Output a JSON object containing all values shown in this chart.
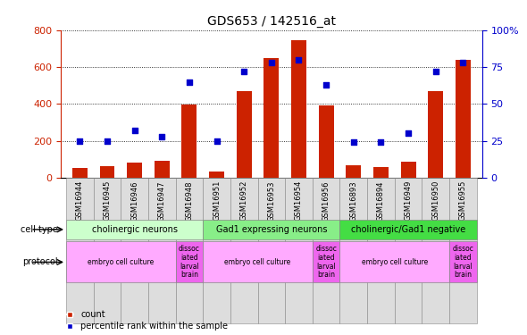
{
  "title": "GDS653 / 142516_at",
  "samples": [
    "GSM16944",
    "GSM16945",
    "GSM16946",
    "GSM16947",
    "GSM16948",
    "GSM16951",
    "GSM16952",
    "GSM16953",
    "GSM16954",
    "GSM16956",
    "GSM16893",
    "GSM16894",
    "GSM16949",
    "GSM16950",
    "GSM16955"
  ],
  "counts": [
    50,
    60,
    80,
    90,
    395,
    35,
    470,
    650,
    745,
    390,
    65,
    55,
    85,
    470,
    640
  ],
  "percentile": [
    25,
    25,
    32,
    28,
    65,
    25,
    72,
    78,
    80,
    63,
    24,
    24,
    30,
    72,
    78
  ],
  "ylim_left": [
    0,
    800
  ],
  "ylim_right": [
    0,
    100
  ],
  "yticks_left": [
    0,
    200,
    400,
    600,
    800
  ],
  "yticks_right": [
    0,
    25,
    50,
    75,
    100
  ],
  "bar_color": "#cc2200",
  "dot_color": "#0000cc",
  "cell_type_groups": [
    {
      "label": "cholinergic neurons",
      "start": 0,
      "end": 5,
      "color": "#ccffcc"
    },
    {
      "label": "Gad1 expressing neurons",
      "start": 5,
      "end": 10,
      "color": "#88ee88"
    },
    {
      "label": "cholinergic/Gad1 negative",
      "start": 10,
      "end": 15,
      "color": "#44dd44"
    }
  ],
  "protocol_groups": [
    {
      "label": "embryo cell culture",
      "start": 0,
      "end": 4,
      "color": "#ffaaff"
    },
    {
      "label": "dissoc\niated\nlarval\nbrain",
      "start": 4,
      "end": 5,
      "color": "#ee66ee"
    },
    {
      "label": "embryo cell culture",
      "start": 5,
      "end": 9,
      "color": "#ffaaff"
    },
    {
      "label": "dissoc\niated\nlarval\nbrain",
      "start": 9,
      "end": 10,
      "color": "#ee66ee"
    },
    {
      "label": "embryo cell culture",
      "start": 10,
      "end": 14,
      "color": "#ffaaff"
    },
    {
      "label": "dissoc\niated\nlarval\nbrain",
      "start": 14,
      "end": 15,
      "color": "#ee66ee"
    }
  ],
  "title_fontsize": 10,
  "axis_fontsize": 8,
  "tick_fontsize": 6,
  "label_fontsize": 7,
  "row_label_fontsize": 7,
  "legend_fontsize": 7
}
